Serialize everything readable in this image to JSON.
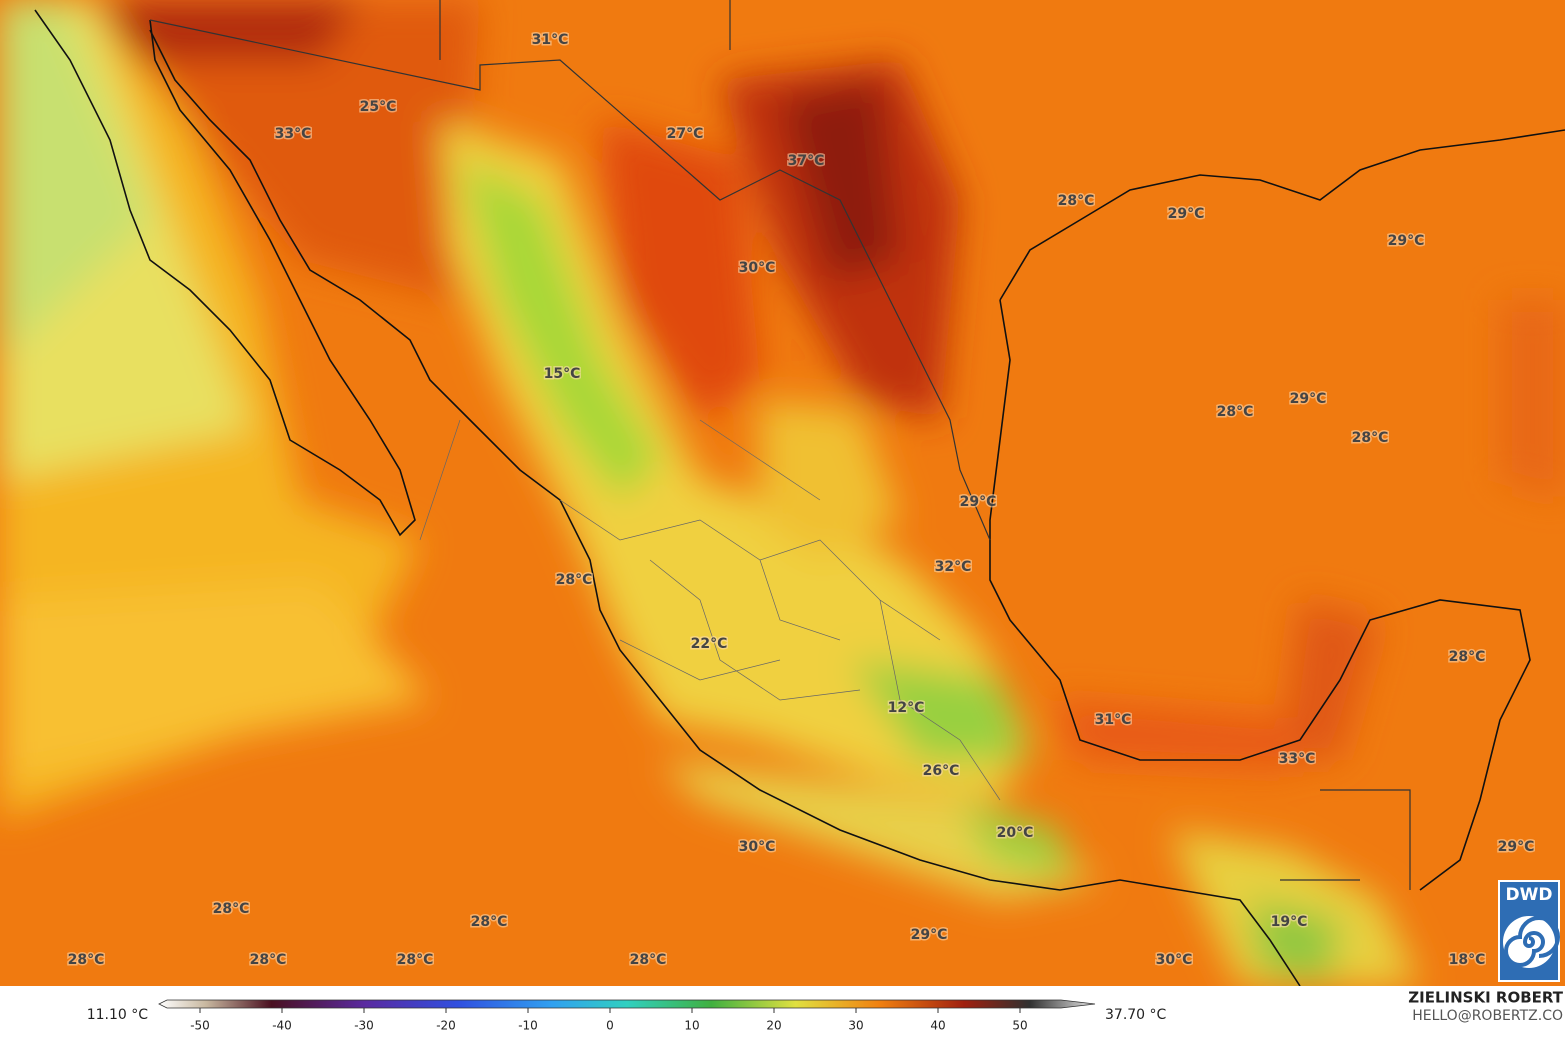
{
  "map": {
    "temperature_labels": [
      "31°C",
      "25°C",
      "33°C",
      "27°C",
      "37°C",
      "28°C",
      "29°C",
      "29°C",
      "30°C",
      "15°C",
      "28°C",
      "29°C",
      "28°C",
      "29°C",
      "32°C",
      "28°C",
      "22°C",
      "28°C",
      "12°C",
      "31°C",
      "33°C",
      "26°C",
      "20°C",
      "30°C",
      "29°C",
      "28°C",
      "28°C",
      "19°C",
      "29°C",
      "28°C",
      "28°C",
      "28°C",
      "28°C",
      "30°C",
      "18°C"
    ],
    "logo": "DWD"
  },
  "colorbar": {
    "min_label": "11.10 °C",
    "max_label": "37.70 °C",
    "lim": [
      -55,
      55
    ],
    "ticks": [
      -50,
      -40,
      -30,
      -20,
      -10,
      0,
      10,
      20,
      30,
      40,
      50
    ]
  },
  "credit": {
    "name": "ZIELINSKI ROBERT",
    "email": "HELLO@ROBERTZ.CO"
  }
}
